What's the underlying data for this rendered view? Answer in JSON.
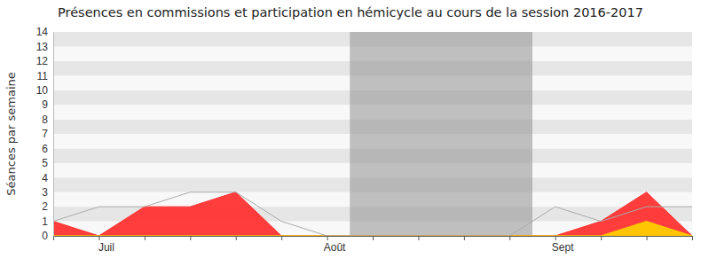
{
  "chart_data": {
    "type": "area",
    "title": "Présences en commissions et participation en hémicycle au cours de la session 2016-2017",
    "y_label": "Séances par semaine",
    "categories": [
      null,
      "Juil",
      null,
      null,
      null,
      null,
      "Août",
      null,
      null,
      null,
      null,
      "Sept",
      null,
      null,
      null
    ],
    "series": [
      {
        "type": "area",
        "color": "#ff3333",
        "values": [
          1,
          0,
          2,
          2,
          3,
          0,
          0,
          0,
          0,
          0,
          0,
          0,
          1,
          3,
          0
        ]
      },
      {
        "type": "area",
        "color": "#ffcc00",
        "values": [
          0,
          0,
          0,
          0,
          0,
          0,
          0,
          0,
          0,
          0,
          0,
          0,
          0,
          1,
          0
        ]
      },
      {
        "type": "line",
        "color": "#aaaaaa",
        "values": [
          1,
          2,
          2,
          3,
          3,
          1,
          0,
          0,
          0,
          0,
          0,
          2,
          1,
          2,
          2
        ]
      }
    ],
    "highlight": [
      6.5,
      10.5
    ],
    "ylim": [
      0,
      14
    ],
    "yticks": [
      0,
      1,
      2,
      3,
      4,
      5,
      6,
      7,
      8,
      9,
      10,
      11,
      12,
      13,
      14
    ],
    "grid": true
  }
}
